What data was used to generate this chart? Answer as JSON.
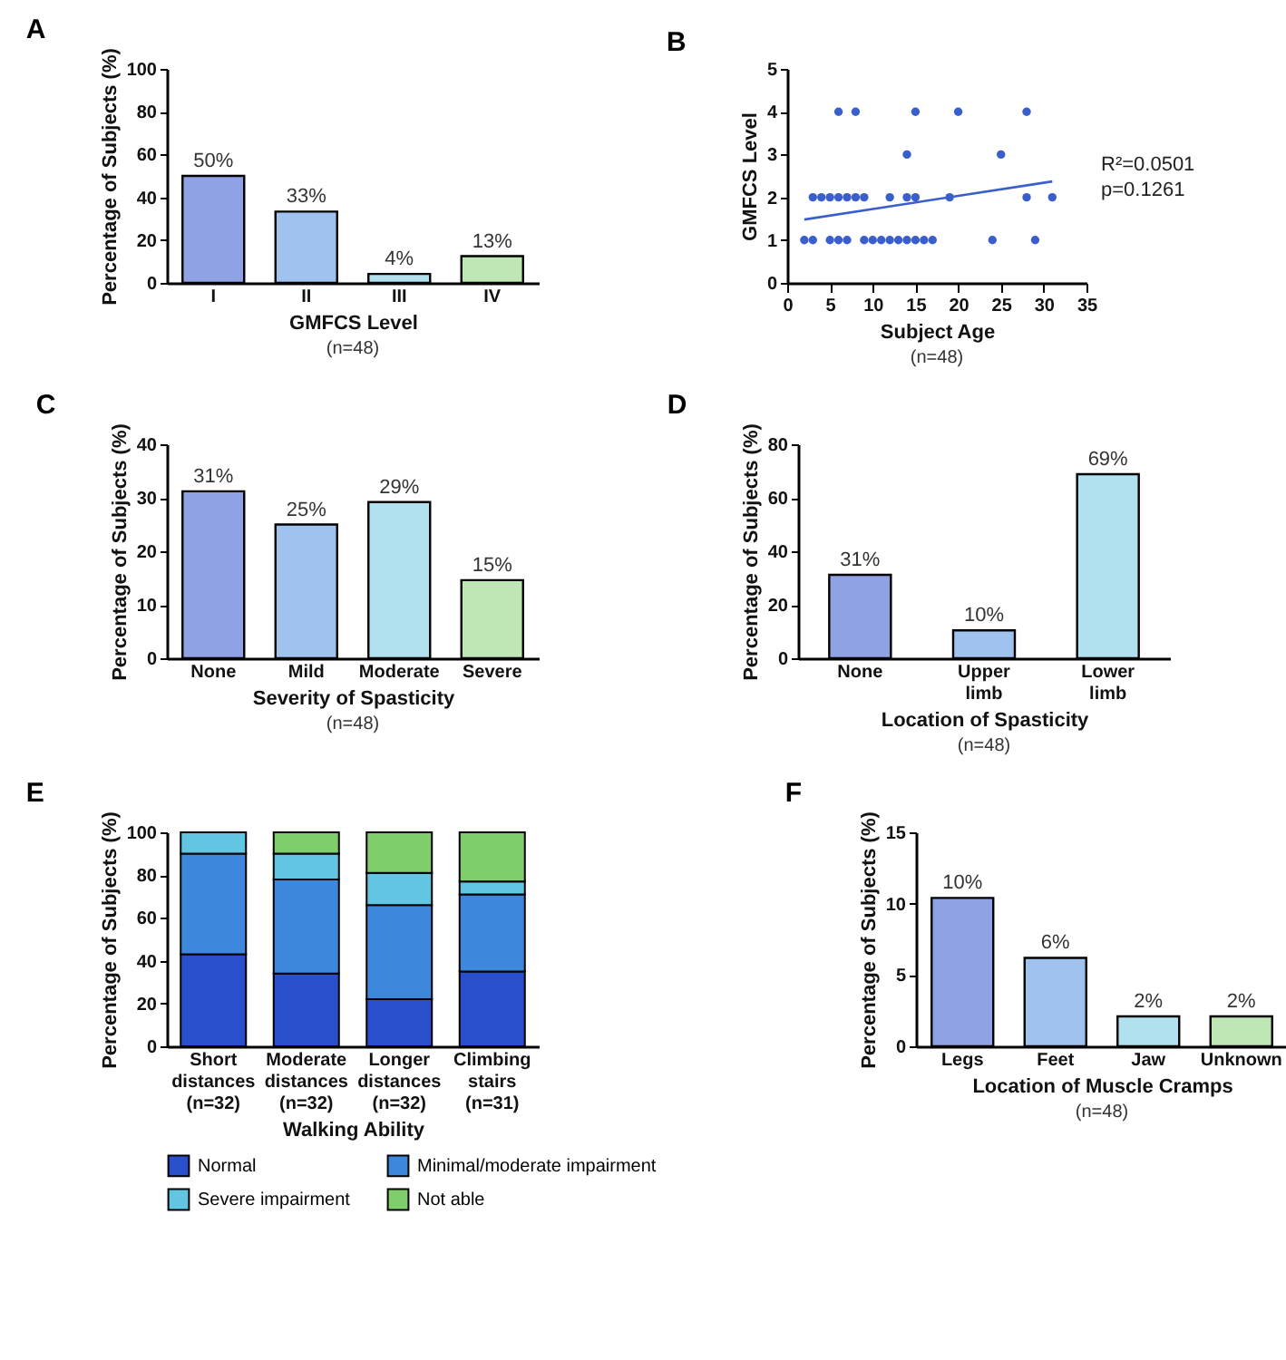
{
  "chart_data": [
    {
      "type": "bar",
      "title": "A",
      "xlabel": "GMFCS Level",
      "ylabel": "Percentage of Subjects (%)",
      "annotations": [
        "(n=48)"
      ],
      "categories": [
        "I",
        "II",
        "III",
        "IV"
      ],
      "values": [
        50,
        33.3,
        4.2,
        12.5
      ],
      "value_labels": [
        "50%",
        "33%",
        "4%",
        "13%"
      ],
      "colors": [
        "#8fa3e4",
        "#9fc3ee",
        "#b1e0ef",
        "#bfe6b5"
      ],
      "ylim": [
        0,
        100
      ],
      "yticks": [
        0,
        20,
        40,
        60,
        80,
        100
      ]
    },
    {
      "type": "scatter",
      "title": "B",
      "xlabel": "Subject Age",
      "ylabel": "GMFCS Level",
      "annotations": [
        "R²=0.0501",
        "p=0.1261",
        "(n=48)"
      ],
      "xlim": [
        0,
        35
      ],
      "xticks": [
        0,
        5,
        10,
        15,
        20,
        25,
        30,
        35
      ],
      "ylim": [
        0,
        5
      ],
      "yticks": [
        0,
        1,
        2,
        3,
        4,
        5
      ],
      "series": [
        {
          "type": "scatter",
          "marker": "circle",
          "color": "#3a5fcd",
          "x": [
            6,
            8,
            15,
            20,
            28,
            14,
            25,
            3,
            4,
            5,
            6,
            7,
            8,
            9,
            12,
            14,
            15,
            19,
            28,
            31,
            2,
            3,
            5,
            6,
            7,
            9,
            10,
            11,
            12,
            13,
            14,
            15,
            16,
            17,
            24,
            29
          ],
          "values": [
            4,
            4,
            4,
            4,
            4,
            3,
            3,
            2,
            2,
            2,
            2,
            2,
            2,
            2,
            2,
            2,
            2,
            2,
            2,
            2,
            1,
            1,
            1,
            1,
            1,
            1,
            1,
            1,
            1,
            1,
            1,
            1,
            1,
            1,
            1,
            1
          ]
        },
        {
          "type": "line",
          "color": "#3a5fcd",
          "x": [
            2,
            31
          ],
          "values": [
            1.48,
            2.37
          ]
        }
      ]
    },
    {
      "type": "bar",
      "title": "C",
      "xlabel": "Severity of Spasticity",
      "ylabel": "Percentage of Subjects (%)",
      "annotations": [
        "(n=48)"
      ],
      "categories": [
        "None",
        "Mild",
        "Moderate",
        "Severe"
      ],
      "values": [
        31.2,
        25,
        29.2,
        14.6
      ],
      "value_labels": [
        "31%",
        "25%",
        "29%",
        "15%"
      ],
      "colors": [
        "#8fa3e4",
        "#9fc3ee",
        "#b1e0ef",
        "#bfe6b5"
      ],
      "ylim": [
        0,
        40
      ],
      "yticks": [
        0,
        10,
        20,
        30,
        40
      ]
    },
    {
      "type": "bar",
      "title": "D",
      "xlabel": "Location of Spasticity",
      "ylabel": "Percentage of Subjects (%)",
      "annotations": [
        "(n=48)"
      ],
      "categories": [
        "None",
        "Upper\nlimb",
        "Lower\nlimb"
      ],
      "values": [
        31.2,
        10.4,
        68.8
      ],
      "value_labels": [
        "31%",
        "10%",
        "69%"
      ],
      "colors": [
        "#8fa3e4",
        "#9fc3ee",
        "#b1e0ef"
      ],
      "ylim": [
        0,
        80
      ],
      "yticks": [
        0,
        20,
        40,
        60,
        80
      ]
    },
    {
      "type": "bar",
      "title": "E",
      "xlabel": "Walking Ability",
      "ylabel": "Percentage of Subjects (%)",
      "stacked": true,
      "legend": "bottom",
      "categories": [
        "Short\ndistances\n(n=32)",
        "Moderate\ndistances\n(n=32)",
        "Longer\ndistances\n(n=32)",
        "Climbing\nstairs\n(n=31)"
      ],
      "ylim": [
        0,
        100
      ],
      "yticks": [
        0,
        20,
        40,
        60,
        80,
        100
      ],
      "series": [
        {
          "name": "Normal",
          "color": "#2a4fcc",
          "values": [
            43,
            34,
            22,
            35
          ]
        },
        {
          "name": "Minimal/moderate impairment",
          "color": "#3d88dc",
          "values": [
            47,
            44,
            44,
            36
          ]
        },
        {
          "name": "Severe impairment",
          "color": "#62c6e3",
          "values": [
            10,
            12,
            15,
            6
          ]
        },
        {
          "name": "Not able",
          "color": "#7fce6b",
          "values": [
            null,
            10,
            19,
            23
          ]
        }
      ]
    },
    {
      "type": "bar",
      "title": "F",
      "xlabel": "Location of Muscle Cramps",
      "ylabel": "Percentage of Subjects (%)",
      "annotations": [
        "(n=48)"
      ],
      "categories": [
        "Legs",
        "Feet",
        "Jaw",
        "Unknown"
      ],
      "values": [
        10.4,
        6.2,
        2.1,
        2.1
      ],
      "value_labels": [
        "10%",
        "6%",
        "2%",
        "2%"
      ],
      "colors": [
        "#8fa3e4",
        "#9fc3ee",
        "#b1e0ef",
        "#bfe6b5"
      ],
      "ylim": [
        0,
        15
      ],
      "yticks": [
        0,
        5,
        10,
        15
      ]
    }
  ]
}
